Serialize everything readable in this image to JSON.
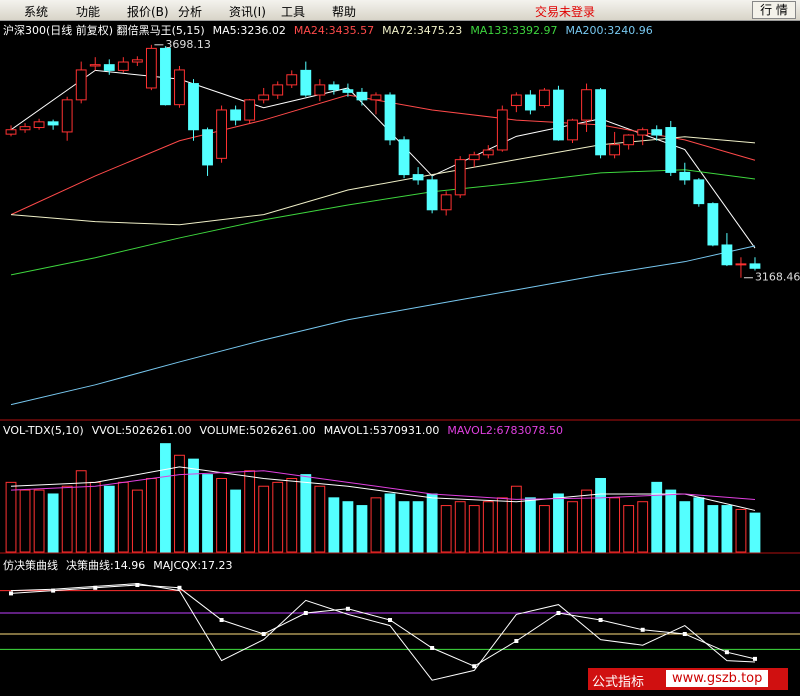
{
  "menu": [
    "系统",
    "功能",
    "报价(B)",
    "分析",
    "资讯(I)",
    "工具",
    "帮助"
  ],
  "status": "交易未登录",
  "button": "行 情",
  "watermark": {
    "label": "公式指标",
    "url": "www.gszb.top"
  },
  "chart_data": [
    {
      "type": "candlestick",
      "title": "沪深300(日线 前复权) 翻倍黑马王(5,15)",
      "ylim": [
        2845,
        3750
      ],
      "up_color": "#ff3232",
      "down_color": "#54ffff",
      "open": [
        3495,
        3505,
        3510,
        3523,
        3500,
        3573,
        3650,
        3653,
        3640,
        3659,
        3600,
        3690,
        3562,
        3610,
        3505,
        3440,
        3550,
        3527,
        3573,
        3584,
        3607,
        3640,
        3584,
        3607,
        3596,
        3590,
        3573,
        3584,
        3482,
        3403,
        3391,
        3323,
        3357,
        3437,
        3448,
        3459,
        3560,
        3584,
        3560,
        3595,
        3482,
        3527,
        3596,
        3448,
        3471,
        3493,
        3505,
        3510,
        3408,
        3391,
        3337,
        3243,
        3198,
        3200
      ],
      "high": [
        3515,
        3520,
        3530,
        3528,
        3580,
        3660,
        3670,
        3665,
        3670,
        3672,
        3698.13,
        3695,
        3650,
        3620,
        3510,
        3560,
        3560,
        3575,
        3600,
        3615,
        3640,
        3660,
        3620,
        3615,
        3610,
        3600,
        3590,
        3590,
        3490,
        3420,
        3400,
        3365,
        3445,
        3455,
        3470,
        3560,
        3590,
        3595,
        3600,
        3605,
        3530,
        3610,
        3600,
        3500,
        3495,
        3510,
        3515,
        3525,
        3430,
        3395,
        3340,
        3270,
        3215,
        3215
      ],
      "low": [
        3490,
        3498,
        3505,
        3505,
        3480,
        3565,
        3640,
        3630,
        3635,
        3650,
        3595,
        3560,
        3555,
        3480,
        3400,
        3430,
        3515,
        3520,
        3565,
        3575,
        3600,
        3580,
        3570,
        3585,
        3580,
        3560,
        3540,
        3470,
        3395,
        3380,
        3315,
        3310,
        3350,
        3420,
        3440,
        3455,
        3545,
        3540,
        3555,
        3480,
        3475,
        3500,
        3440,
        3440,
        3460,
        3470,
        3480,
        3400,
        3380,
        3330,
        3240,
        3195,
        3168.46,
        3185
      ],
      "close": [
        3505,
        3512,
        3523,
        3516,
        3573,
        3641,
        3653,
        3640,
        3659,
        3664,
        3690,
        3562,
        3641,
        3505,
        3425,
        3550,
        3527,
        3573,
        3584,
        3607,
        3630,
        3584,
        3607,
        3596,
        3590,
        3573,
        3584,
        3482,
        3403,
        3391,
        3323,
        3357,
        3437,
        3448,
        3459,
        3550,
        3584,
        3550,
        3595,
        3482,
        3527,
        3596,
        3448,
        3471,
        3493,
        3505,
        3493,
        3408,
        3391,
        3337,
        3243,
        3198,
        3200,
        3190
      ],
      "series": [
        {
          "name": "MA5:3236.02",
          "color": "#ffffff",
          "x": [
            0,
            6,
            12,
            18,
            24,
            30,
            36,
            42,
            48,
            53
          ],
          "values": [
            3505,
            3640,
            3620,
            3555,
            3600,
            3400,
            3490,
            3530,
            3460,
            3236.02
          ]
        },
        {
          "name": "MA24:3435.57",
          "color": "#ff4a4a",
          "x": [
            0,
            6,
            12,
            18,
            24,
            30,
            36,
            42,
            48,
            53
          ],
          "values": [
            3312,
            3400,
            3480,
            3527,
            3584,
            3550,
            3527,
            3516,
            3482,
            3435.57
          ]
        },
        {
          "name": "MA72:3475.23",
          "color": "#f0f0c8",
          "x": [
            0,
            6,
            12,
            18,
            24,
            30,
            36,
            42,
            48,
            53
          ],
          "values": [
            3312,
            3296,
            3289,
            3312,
            3368,
            3403,
            3437,
            3471,
            3489,
            3475.23
          ]
        },
        {
          "name": "MA133:3392.97",
          "color": "#3ed63e",
          "x": [
            0,
            6,
            12,
            18,
            24,
            30,
            36,
            42,
            48,
            53
          ],
          "values": [
            3175,
            3214,
            3259,
            3300,
            3334,
            3364,
            3384,
            3407,
            3414,
            3392.97
          ]
        },
        {
          "name": "MA200:3240.96",
          "color": "#78c8f0",
          "x": [
            0,
            6,
            12,
            18,
            24,
            30,
            36,
            42,
            48,
            53
          ],
          "values": [
            2880,
            2925,
            2977,
            3027,
            3073,
            3107,
            3141,
            3175,
            3205,
            3240.96
          ]
        }
      ],
      "annotations": [
        {
          "label": "3698.13",
          "x": 10,
          "value": 3698.13
        },
        {
          "label": "3168.46",
          "x": 52,
          "value": 3168.46
        }
      ]
    },
    {
      "type": "bar",
      "title": "VOL-TDX(5,10)",
      "subtitle": "VVOL:5026261.00",
      "ylim": [
        0,
        16800000
      ],
      "series": [
        {
          "name": "VOLUME:5026261.00",
          "color": "#ffffff",
          "values": [
            9000000,
            8000000,
            8000000,
            7500000,
            8500000,
            10500000,
            9000000,
            8500000,
            9000000,
            8000000,
            9500000,
            14000000,
            12500000,
            12000000,
            10000000,
            9500000,
            8000000,
            10500000,
            8500000,
            9000000,
            9500000,
            10000000,
            8500000,
            7000000,
            6500000,
            6000000,
            7000000,
            7500000,
            6500000,
            6500000,
            7500000,
            6000000,
            6500000,
            6000000,
            6500000,
            7000000,
            8500000,
            7000000,
            6000000,
            7500000,
            6500000,
            8000000,
            9500000,
            7000000,
            6000000,
            6500000,
            9000000,
            8000000,
            6500000,
            7000000,
            6000000,
            6000000,
            5500000,
            5026261
          ]
        },
        {
          "name": "MAVOL1:5370931.00",
          "color": "#ffffff",
          "x": [
            0,
            6,
            12,
            18,
            24,
            30,
            36,
            42,
            48,
            53
          ],
          "values": [
            8500000,
            9000000,
            11000000,
            9500000,
            8500000,
            7000000,
            6500000,
            7500000,
            7500000,
            5370931
          ]
        },
        {
          "name": "MAVOL2:6783078.50",
          "color": "#e040e0",
          "x": [
            0,
            6,
            12,
            18,
            24,
            30,
            36,
            42,
            48,
            53
          ],
          "values": [
            8000000,
            8500000,
            10000000,
            10500000,
            9000000,
            7500000,
            6800000,
            7000000,
            7500000,
            6783078.5
          ]
        }
      ]
    },
    {
      "type": "line",
      "title": "仿决策曲线",
      "ylim": [
        -5,
        90
      ],
      "levels": [
        {
          "value": 66,
          "color": "#ff3030"
        },
        {
          "value": 50,
          "color": "#c040ff"
        },
        {
          "value": 35,
          "color": "#ffe080"
        },
        {
          "value": 24,
          "color": "#40e040"
        }
      ],
      "series": [
        {
          "name": "决策曲线:14.96",
          "color": "#ffffff",
          "x": [
            0,
            3,
            6,
            9,
            12,
            15,
            18,
            21,
            24,
            27,
            30,
            33,
            36,
            39,
            42,
            45,
            48,
            51,
            53
          ],
          "values": [
            66,
            67,
            69,
            71,
            66,
            16,
            31,
            59,
            49,
            41,
            2,
            9,
            49,
            56,
            31,
            27,
            41,
            16,
            14.96
          ]
        },
        {
          "name": "MAJCQX:17.23",
          "color": "#ffffff",
          "markers": true,
          "x": [
            0,
            3,
            6,
            9,
            12,
            15,
            18,
            21,
            24,
            27,
            30,
            33,
            36,
            39,
            42,
            45,
            48,
            51,
            53
          ],
          "values": [
            64,
            66,
            68,
            70,
            68,
            45,
            35,
            50,
            53,
            45,
            25,
            12,
            30,
            50,
            45,
            38,
            35,
            22,
            17.23
          ]
        }
      ]
    }
  ]
}
